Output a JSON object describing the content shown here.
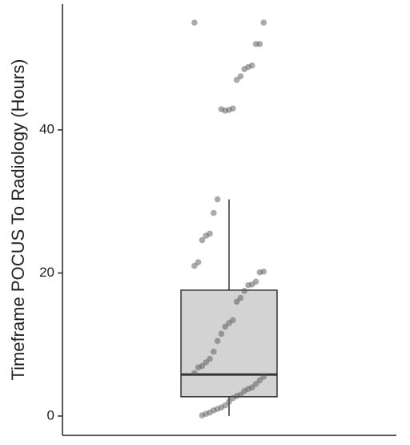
{
  "chart_data": {
    "type": "box",
    "ylabel": "Timeframe POCUS To Radiology (Hours)",
    "ylim": [
      -2.7,
      57.6
    ],
    "yticks": [
      0,
      20,
      40
    ],
    "box": {
      "min": 0,
      "q1": 2.7,
      "median": 5.8,
      "q3": 17.6,
      "max": 30.3,
      "color": "#d3d3d3"
    },
    "point_color": "#555555",
    "points": [
      55,
      55,
      52,
      52,
      49,
      48.8,
      48.5,
      47.5,
      47,
      43,
      42.8,
      42.7,
      42.9,
      30.3,
      28.4,
      25.5,
      25.2,
      24.6,
      21.5,
      21,
      20.2,
      20.1,
      18.8,
      18.4,
      18.3,
      17.5,
      16.5,
      16,
      13.4,
      13,
      12.5,
      11.5,
      10.5,
      9,
      8,
      7.5,
      7,
      6.8,
      6,
      5.5,
      5,
      4.5,
      4,
      3.8,
      3.5,
      3,
      2.8,
      2.5,
      2,
      1.5,
      1.2,
      1,
      0.8,
      0.5,
      0.3,
      0.1
    ]
  }
}
